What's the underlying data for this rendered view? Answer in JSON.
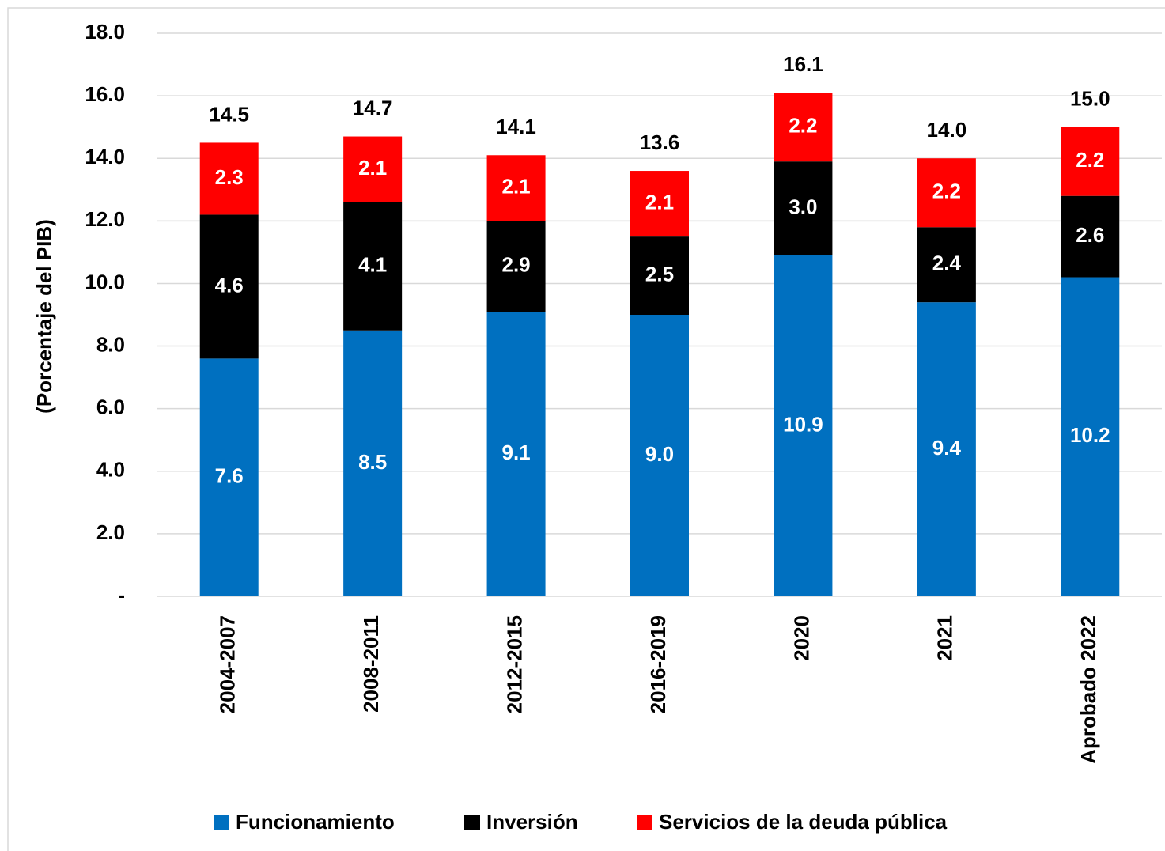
{
  "chart_data": {
    "type": "stacked_bar",
    "y_label": "(Porcentaje del PIB)",
    "categories": [
      "2004-2007",
      "2008-2011",
      "2012-2015",
      "2016-2019",
      "2020",
      "2021",
      "Aprobado 2022"
    ],
    "series": [
      {
        "name": "Funcionamiento",
        "color": "#0070c0",
        "values": [
          7.6,
          8.5,
          9.1,
          9.0,
          10.9,
          9.4,
          10.2
        ],
        "value_labels": [
          "7.6",
          "8.5",
          "9.1",
          "9.0",
          "10.9",
          "9.4",
          "10.2"
        ]
      },
      {
        "name": "Inversión",
        "color": "#000000",
        "values": [
          4.6,
          4.1,
          2.9,
          2.5,
          3.0,
          2.4,
          2.6
        ],
        "value_labels": [
          "4.6",
          "4.1",
          "2.9",
          "2.5",
          "3.0",
          "2.4",
          "2.6"
        ]
      },
      {
        "name": "Servicios de la deuda pública",
        "color": "#ff0000",
        "values": [
          2.3,
          2.1,
          2.1,
          2.1,
          2.2,
          2.2,
          2.2
        ],
        "value_labels": [
          "2.3",
          "2.1",
          "2.1",
          "2.1",
          "2.2",
          "2.2",
          "2.2"
        ]
      }
    ],
    "totals": [
      14.5,
      14.7,
      14.1,
      13.6,
      16.1,
      14.0,
      15.0
    ],
    "total_labels": [
      "14.5",
      "14.7",
      "14.1",
      "13.6",
      "16.1",
      "14.0",
      "15.0"
    ],
    "ylim": [
      0,
      18
    ],
    "yticks": [
      {
        "value": 0,
        "label": "-"
      },
      {
        "value": 2,
        "label": "2.0"
      },
      {
        "value": 4,
        "label": "4.0"
      },
      {
        "value": 6,
        "label": "6.0"
      },
      {
        "value": 8,
        "label": "8.0"
      },
      {
        "value": 10,
        "label": "10.0"
      },
      {
        "value": 12,
        "label": "12.0"
      },
      {
        "value": 14,
        "label": "14.0"
      },
      {
        "value": 16,
        "label": "16.0"
      },
      {
        "value": 18,
        "label": "18.0"
      }
    ],
    "grid": true,
    "legend": "bottom"
  }
}
